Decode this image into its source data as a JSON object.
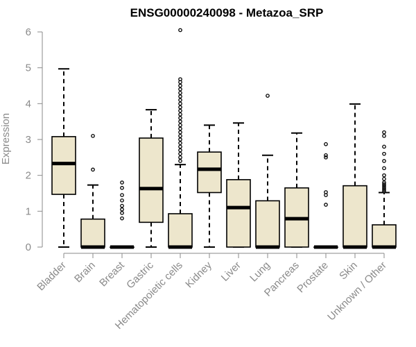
{
  "chart_data": {
    "type": "box",
    "title": "ENSG00000240098 - Metazoa_SRP",
    "xlabel": "",
    "ylabel": "Expression",
    "ylim": [
      0,
      6
    ],
    "yticks": [
      0,
      1,
      2,
      3,
      4,
      5,
      6
    ],
    "grid": false,
    "legend": "none",
    "box_fill": "#ede6cc",
    "box_stroke": "#000000",
    "axis_color": "#8a8a8a",
    "categories": [
      "Bladder",
      "Brain",
      "Breast",
      "Gastric",
      "Hematopoietic cells",
      "Kidney",
      "Liver",
      "Lung",
      "Pancreas",
      "Prostate",
      "Skin",
      "Unknown / Other"
    ],
    "boxes": [
      {
        "category": "Bladder",
        "whisker_low": 0,
        "q1": 1.47,
        "median": 2.33,
        "q3": 3.08,
        "whisker_high": 4.97,
        "outliers": []
      },
      {
        "category": "Brain",
        "whisker_low": 0,
        "q1": 0,
        "median": 0,
        "q3": 0.78,
        "whisker_high": 1.73,
        "outliers": [
          2.16,
          3.1
        ]
      },
      {
        "category": "Breast",
        "whisker_low": 0,
        "q1": 0,
        "median": 0,
        "q3": 0,
        "whisker_high": 0,
        "outliers": [
          0.8,
          0.95,
          1.05,
          1.15,
          1.3,
          1.45,
          1.65,
          1.8
        ]
      },
      {
        "category": "Gastric",
        "whisker_low": 0,
        "q1": 0.69,
        "median": 1.63,
        "q3": 3.04,
        "whisker_high": 3.83,
        "outliers": []
      },
      {
        "category": "Hematopoietic cells",
        "whisker_low": 0,
        "q1": 0,
        "median": 0,
        "q3": 0.93,
        "whisker_high": 2.3,
        "outliers": [
          2.4,
          2.5,
          2.6,
          2.7,
          2.8,
          2.9,
          3.0,
          3.1,
          3.2,
          3.3,
          3.4,
          3.5,
          3.6,
          3.7,
          3.8,
          3.9,
          4.0,
          4.1,
          4.2,
          4.3,
          4.4,
          4.5,
          4.6,
          4.68,
          6.05
        ]
      },
      {
        "category": "Kidney",
        "whisker_low": 0,
        "q1": 1.52,
        "median": 2.17,
        "q3": 2.65,
        "whisker_high": 3.4,
        "outliers": []
      },
      {
        "category": "Liver",
        "whisker_low": 0,
        "q1": 0,
        "median": 1.1,
        "q3": 1.88,
        "whisker_high": 3.46,
        "outliers": []
      },
      {
        "category": "Lung",
        "whisker_low": 0,
        "q1": 0,
        "median": 0,
        "q3": 1.29,
        "whisker_high": 2.56,
        "outliers": [
          4.22
        ]
      },
      {
        "category": "Pancreas",
        "whisker_low": 0,
        "q1": 0,
        "median": 0.79,
        "q3": 1.65,
        "whisker_high": 3.18,
        "outliers": []
      },
      {
        "category": "Prostate",
        "whisker_low": 0,
        "q1": 0,
        "median": 0,
        "q3": 0,
        "whisker_high": 0,
        "outliers": [
          1.18,
          1.45,
          1.53,
          2.5,
          2.56,
          2.87
        ]
      },
      {
        "category": "Skin",
        "whisker_low": 0,
        "q1": 0,
        "median": 0,
        "q3": 1.71,
        "whisker_high": 3.99,
        "outliers": []
      },
      {
        "category": "Unknown / Other",
        "whisker_low": 0,
        "q1": 0,
        "median": 0,
        "q3": 0.62,
        "whisker_high": 1.52,
        "outliers": [
          1.55,
          1.6,
          1.65,
          1.7,
          1.75,
          1.8,
          1.9,
          2.0,
          2.2,
          2.4,
          2.6,
          2.8,
          3.1,
          3.2
        ]
      }
    ]
  }
}
